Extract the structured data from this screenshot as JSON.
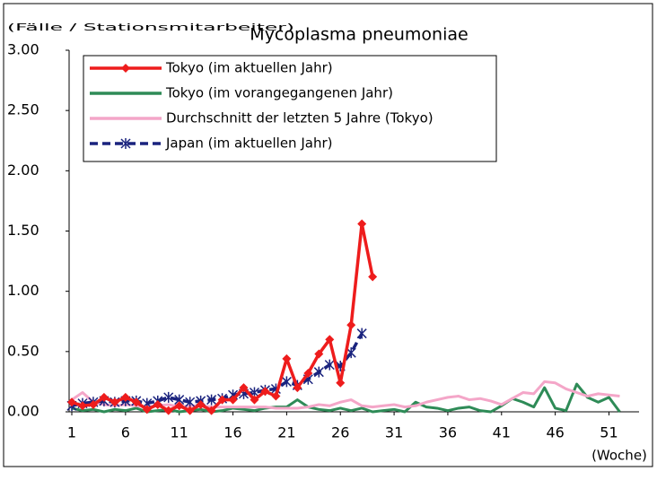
{
  "chart_data": {
    "type": "line",
    "title": "Mycoplasma pneumoniae",
    "y_label": "(Fälle / Stationsmitarbeiter)",
    "x_label": "(Woche)",
    "x": [
      1,
      2,
      3,
      4,
      5,
      6,
      7,
      8,
      9,
      10,
      11,
      12,
      13,
      14,
      15,
      16,
      17,
      18,
      19,
      20,
      21,
      22,
      23,
      24,
      25,
      26,
      27,
      28,
      29,
      30,
      31,
      32,
      33,
      34,
      35,
      36,
      37,
      38,
      39,
      40,
      41,
      42,
      43,
      44,
      45,
      46,
      47,
      48,
      49,
      50,
      51,
      52
    ],
    "xlim": [
      0.75,
      53.8
    ],
    "xticks": [
      1,
      6,
      11,
      16,
      21,
      26,
      31,
      36,
      41,
      46,
      51
    ],
    "ylim": [
      0,
      3
    ],
    "yticks": [
      {
        "value": 0,
        "label": "0.00"
      },
      {
        "value": 0.5,
        "label": "0.50"
      },
      {
        "value": 1,
        "label": "1.00"
      },
      {
        "value": 1.5,
        "label": "1.50"
      },
      {
        "value": 2,
        "label": "2.00"
      },
      {
        "value": 2.5,
        "label": "2.50"
      },
      {
        "value": 3,
        "label": "3.00"
      }
    ],
    "legend": "top-left",
    "series": [
      {
        "name": "Tokyo (im vorangegangenen Jahr)",
        "color": "#2e8b57",
        "marker": "none",
        "dash": false,
        "values": [
          0.03,
          0.01,
          0.02,
          0.0,
          0.02,
          0.01,
          0.03,
          0.0,
          0.01,
          0.02,
          0.0,
          0.01,
          0.02,
          0.0,
          0.01,
          0.03,
          0.02,
          0.01,
          0.03,
          0.04,
          0.04,
          0.1,
          0.04,
          0.02,
          0.01,
          0.03,
          0.01,
          0.03,
          0.0,
          0.01,
          0.02,
          0.0,
          0.08,
          0.04,
          0.03,
          0.01,
          0.03,
          0.04,
          0.01,
          0.0,
          0.05,
          0.11,
          0.08,
          0.04,
          0.2,
          0.03,
          0.01,
          0.23,
          0.12,
          0.08,
          0.12,
          0.0
        ]
      },
      {
        "name": "Durchschnitt der letzten 5 Jahre (Tokyo)",
        "color": "#f4a6c8",
        "marker": "none",
        "dash": false,
        "values": [
          0.1,
          0.16,
          0.08,
          0.06,
          0.05,
          0.06,
          0.05,
          0.04,
          0.05,
          0.06,
          0.04,
          0.05,
          0.05,
          0.04,
          0.04,
          0.04,
          0.04,
          0.04,
          0.04,
          0.03,
          0.03,
          0.03,
          0.04,
          0.06,
          0.05,
          0.08,
          0.1,
          0.05,
          0.04,
          0.05,
          0.06,
          0.04,
          0.05,
          0.08,
          0.1,
          0.12,
          0.13,
          0.1,
          0.11,
          0.09,
          0.06,
          0.11,
          0.16,
          0.15,
          0.25,
          0.24,
          0.19,
          0.16,
          0.13,
          0.15,
          0.14,
          0.13
        ]
      },
      {
        "name": "Japan (im aktuellen Jahr)",
        "color": "#1a237e",
        "marker": "star",
        "dash": true,
        "values": [
          0.05,
          0.07,
          0.08,
          0.09,
          0.08,
          0.09,
          0.09,
          0.07,
          0.09,
          0.12,
          0.1,
          0.08,
          0.09,
          0.1,
          0.11,
          0.14,
          0.15,
          0.16,
          0.18,
          0.19,
          0.25,
          0.22,
          0.27,
          0.33,
          0.39,
          0.38,
          0.49,
          0.65,
          null,
          null,
          null,
          null,
          null,
          null,
          null,
          null,
          null,
          null,
          null,
          null,
          null,
          null,
          null,
          null,
          null,
          null,
          null,
          null,
          null,
          null,
          null,
          null
        ]
      },
      {
        "name": "Tokyo (im aktuellen Jahr)",
        "color": "#ee1c1c",
        "marker": "diamond",
        "dash": false,
        "values": [
          0.08,
          0.05,
          0.06,
          0.12,
          0.08,
          0.12,
          0.08,
          0.02,
          0.06,
          0.01,
          0.05,
          0.01,
          0.06,
          0.01,
          0.1,
          0.1,
          0.2,
          0.1,
          0.17,
          0.13,
          0.44,
          0.2,
          0.32,
          0.48,
          0.6,
          0.24,
          0.72,
          1.56,
          1.12,
          null,
          null,
          null,
          null,
          null,
          null,
          null,
          null,
          null,
          null,
          null,
          null,
          null,
          null,
          null,
          null,
          null,
          null,
          null,
          null,
          null,
          null,
          null
        ]
      }
    ],
    "legend_order": [
      3,
      0,
      1,
      2
    ]
  }
}
